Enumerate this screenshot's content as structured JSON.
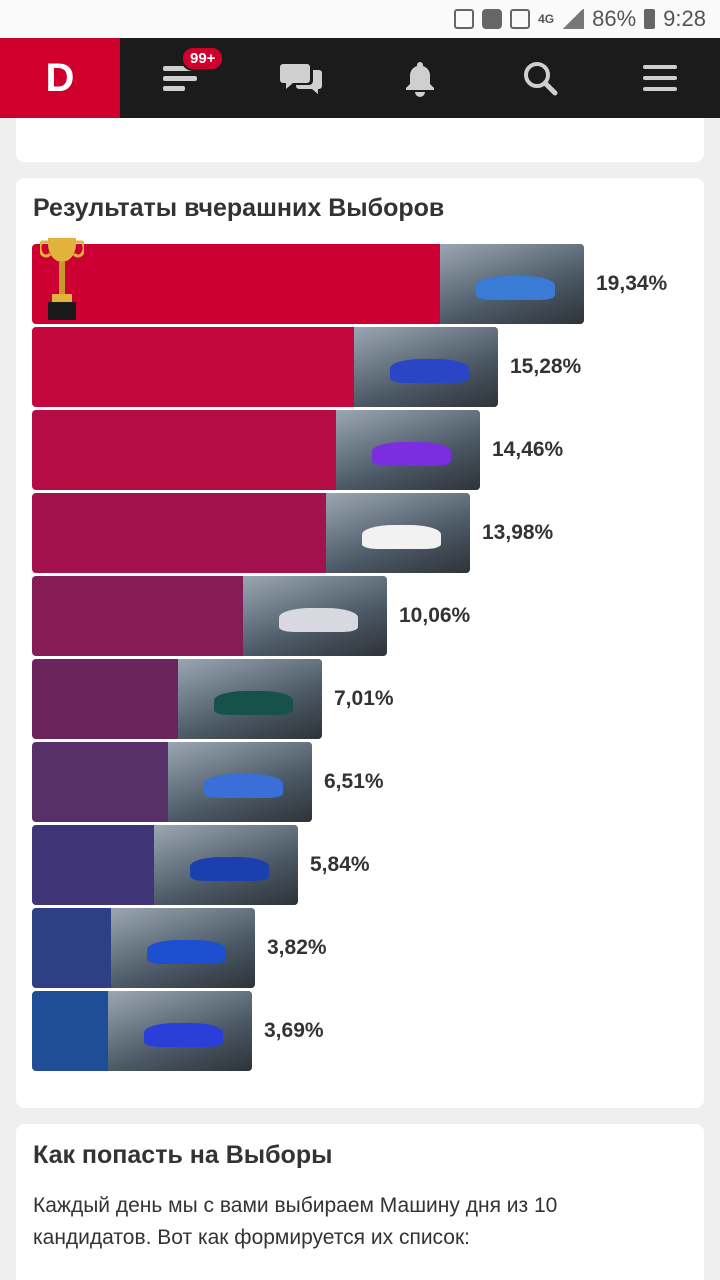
{
  "status_bar": {
    "battery": "86%",
    "time": "9:28",
    "network": "4G"
  },
  "header": {
    "logo": "D",
    "feed_badge": "99+",
    "icons": [
      "feed-icon",
      "chat-icon",
      "bell-icon",
      "search-icon",
      "menu-icon"
    ]
  },
  "results": {
    "title": "Результаты вчерашних Выборов",
    "items": [
      {
        "value": 19.34,
        "label": "19,34%",
        "color": "#cc0033",
        "car_color": "#3a7bd5"
      },
      {
        "value": 15.28,
        "label": "15,28%",
        "color": "#c4073c",
        "car_color": "#2a45c6"
      },
      {
        "value": 14.46,
        "label": "14,46%",
        "color": "#b60c45",
        "car_color": "#7a2ee0"
      },
      {
        "value": 13.98,
        "label": "13,98%",
        "color": "#a3124d",
        "car_color": "#f2f2f2"
      },
      {
        "value": 10.06,
        "label": "10,06%",
        "color": "#861c55",
        "car_color": "#d8d8e0"
      },
      {
        "value": 7.01,
        "label": "7,01%",
        "color": "#6b235c",
        "car_color": "#16524a"
      },
      {
        "value": 6.51,
        "label": "6,51%",
        "color": "#573067",
        "car_color": "#3a6fd8"
      },
      {
        "value": 5.84,
        "label": "5,84%",
        "color": "#403677",
        "car_color": "#1c3fb0"
      },
      {
        "value": 3.82,
        "label": "3,82%",
        "color": "#2f3f85",
        "car_color": "#1e4fd0"
      },
      {
        "value": 3.69,
        "label": "3,69%",
        "color": "#1f4e96",
        "car_color": "#2b3fd8"
      }
    ]
  },
  "how_to": {
    "title": "Как попасть на Выборы",
    "text": "Каждый день мы с вами выбираем Машину дня из 10 кандидатов. Вот как формируется их список:"
  }
}
